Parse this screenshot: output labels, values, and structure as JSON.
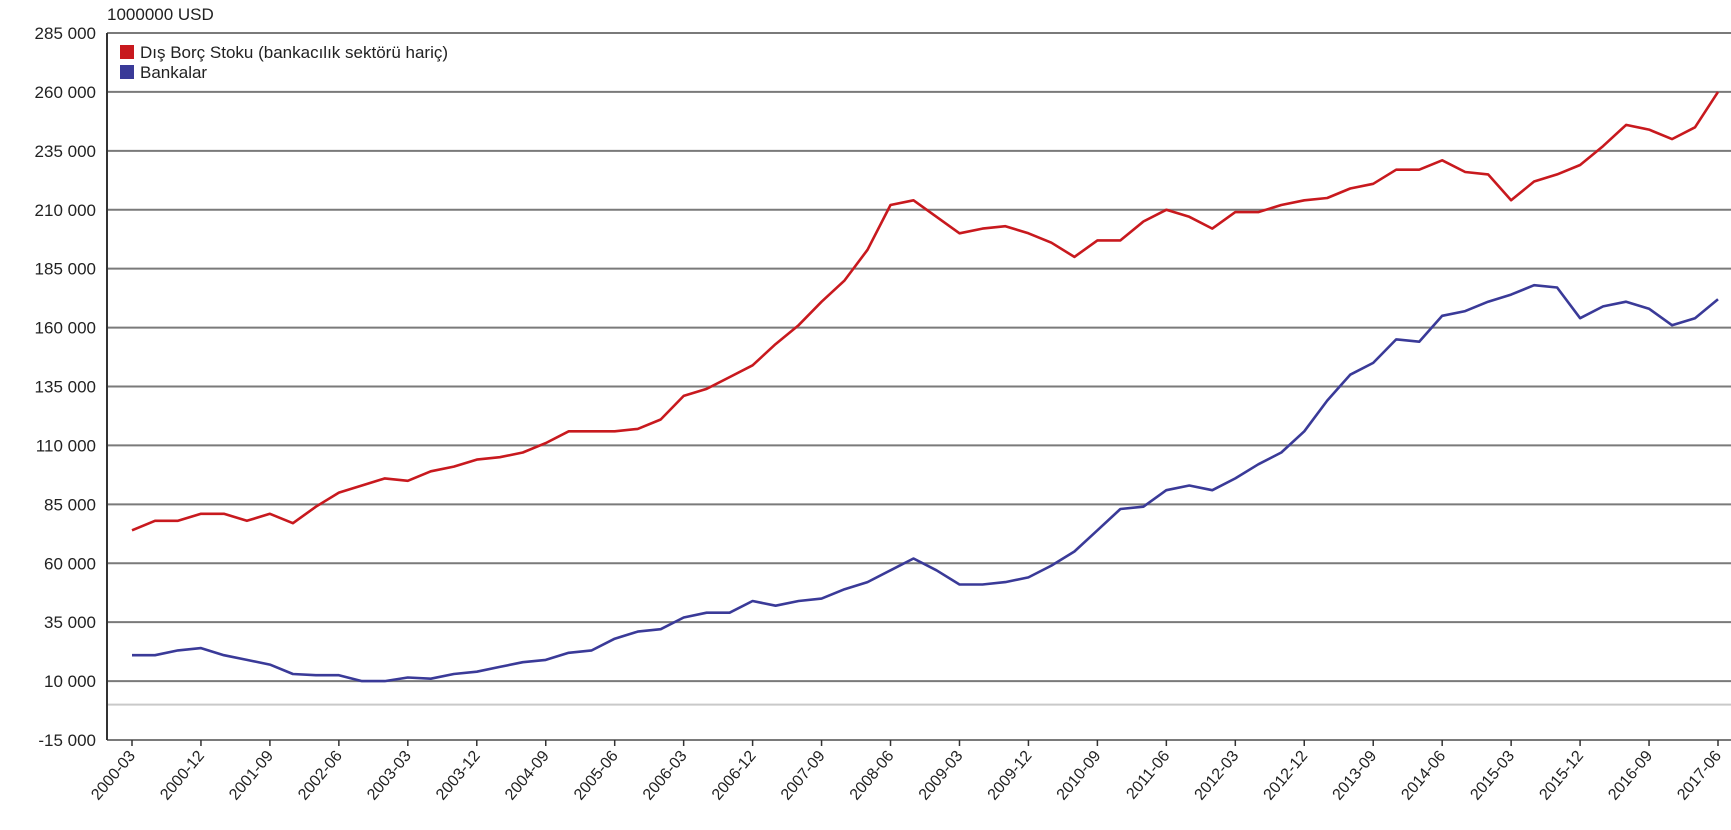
{
  "chart_data": {
    "type": "line",
    "unit_label": "1000000 USD",
    "ylim": [
      -15000,
      285000
    ],
    "y_ticks": [
      -15000,
      10000,
      35000,
      60000,
      85000,
      110000,
      135000,
      160000,
      185000,
      210000,
      235000,
      260000,
      285000
    ],
    "y_tick_labels": [
      "-15 000",
      "10 000",
      "35 000",
      "60 000",
      "85 000",
      "110 000",
      "135 000",
      "160 000",
      "185 000",
      "210 000",
      "235 000",
      "260 000",
      "285 000"
    ],
    "x_tick_labels": [
      "2000-03",
      "2000-12",
      "2001-09",
      "2002-06",
      "2003-03",
      "2003-12",
      "2004-09",
      "2005-06",
      "2006-03",
      "2006-12",
      "2007-09",
      "2008-06",
      "2009-03",
      "2009-12",
      "2010-09",
      "2011-06",
      "2012-03",
      "2012-12",
      "2013-09",
      "2014-06",
      "2015-03",
      "2015-12",
      "2016-09",
      "2017-06"
    ],
    "x": [
      "2000-03",
      "2000-06",
      "2000-09",
      "2000-12",
      "2001-03",
      "2001-06",
      "2001-09",
      "2001-12",
      "2002-03",
      "2002-06",
      "2002-09",
      "2002-12",
      "2003-03",
      "2003-06",
      "2003-09",
      "2003-12",
      "2004-03",
      "2004-06",
      "2004-09",
      "2004-12",
      "2005-03",
      "2005-06",
      "2005-09",
      "2005-12",
      "2006-03",
      "2006-06",
      "2006-09",
      "2006-12",
      "2007-03",
      "2007-06",
      "2007-09",
      "2007-12",
      "2008-03",
      "2008-06",
      "2008-09",
      "2008-12",
      "2009-03",
      "2009-06",
      "2009-09",
      "2009-12",
      "2010-03",
      "2010-06",
      "2010-09",
      "2010-12",
      "2011-03",
      "2011-06",
      "2011-09",
      "2011-12",
      "2012-03",
      "2012-06",
      "2012-09",
      "2012-12",
      "2013-03",
      "2013-06",
      "2013-09",
      "2013-12",
      "2014-03",
      "2014-06",
      "2014-09",
      "2014-12",
      "2015-03",
      "2015-06",
      "2015-09",
      "2015-12",
      "2016-03",
      "2016-06",
      "2016-09",
      "2016-12",
      "2017-03",
      "2017-06"
    ],
    "legend_position": "top-left",
    "grid": true,
    "zero_line": true,
    "series": [
      {
        "name": "Dış Borç Stoku (bankacılık sektörü hariç)",
        "color": "#c8191e",
        "values": [
          74000,
          78000,
          78000,
          81000,
          81000,
          78000,
          81000,
          77000,
          84000,
          90000,
          93000,
          96000,
          95000,
          99000,
          101000,
          104000,
          105000,
          107000,
          111000,
          116000,
          116000,
          116000,
          117000,
          121000,
          131000,
          134000,
          139000,
          144000,
          153000,
          161000,
          171000,
          180000,
          193000,
          212000,
          214000,
          207000,
          200000,
          202000,
          203000,
          200000,
          196000,
          190000,
          197000,
          197000,
          205000,
          210000,
          207000,
          202000,
          209000,
          209000,
          212000,
          214000,
          215000,
          219000,
          221000,
          227000,
          227000,
          231000,
          226000,
          225000,
          214000,
          222000,
          225000,
          229000,
          237000,
          246000,
          244000,
          240000,
          245000,
          260000
        ]
      },
      {
        "name": "Bankalar",
        "color": "#3a3a98",
        "values": [
          21000,
          21000,
          23000,
          24000,
          21000,
          19000,
          17000,
          13000,
          12500,
          12500,
          10000,
          10000,
          11500,
          11000,
          13000,
          14000,
          16000,
          18000,
          19000,
          22000,
          23000,
          28000,
          31000,
          32000,
          37000,
          39000,
          39000,
          44000,
          42000,
          44000,
          45000,
          49000,
          52000,
          57000,
          62000,
          57000,
          51000,
          51000,
          52000,
          54000,
          59000,
          65000,
          74000,
          83000,
          84000,
          91000,
          93000,
          91000,
          96000,
          102000,
          107000,
          116000,
          129000,
          140000,
          145000,
          155000,
          154000,
          165000,
          167000,
          171000,
          174000,
          178000,
          177000,
          164000,
          169000,
          171000,
          168000,
          161000,
          164000,
          172000
        ]
      }
    ]
  }
}
